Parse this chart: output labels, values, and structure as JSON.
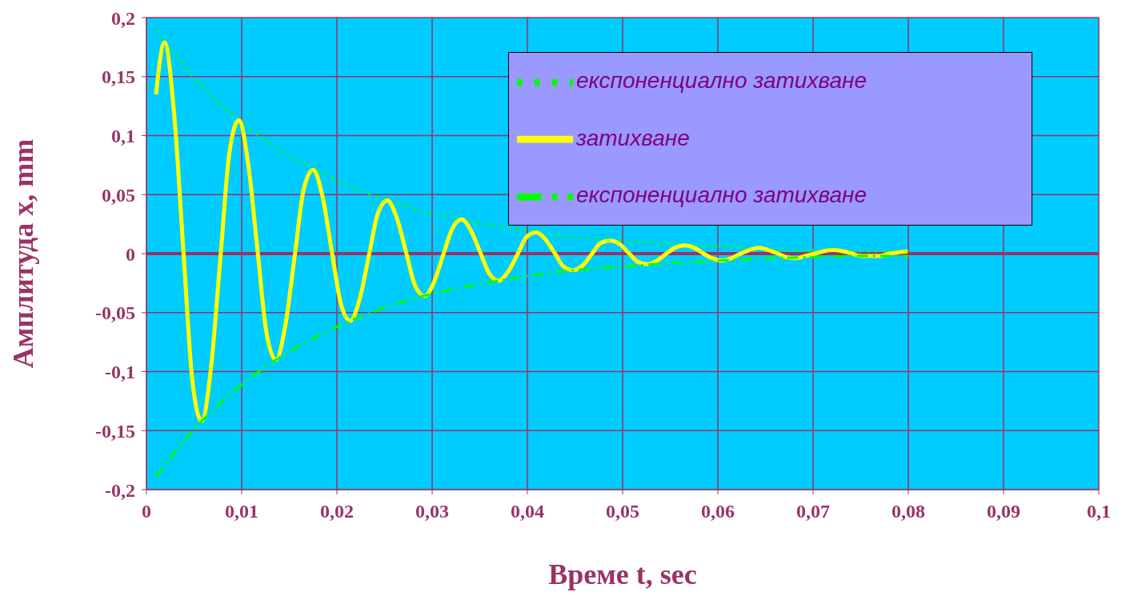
{
  "chart_data": {
    "type": "line",
    "xlabel": "Време t,  sec",
    "ylabel": "Амплитуда x,  mm",
    "xlim": [
      0,
      0.1
    ],
    "xticks": [
      0,
      {
        "value": 0.01,
        "label": "0,01"
      },
      {
        "value": 0.02,
        "label": "0,02"
      },
      {
        "value": 0.03,
        "label": "0,03"
      },
      {
        "value": 0.04,
        "label": "0,04"
      },
      {
        "value": 0.05,
        "label": "0,05"
      },
      {
        "value": 0.06,
        "label": "0,06"
      },
      {
        "value": 0.07,
        "label": "0,07"
      },
      {
        "value": 0.08,
        "label": "0,08"
      },
      {
        "value": 0.09,
        "label": "0,09"
      },
      {
        "value": 0.1,
        "label": "0,1"
      }
    ],
    "ylim": [
      -0.2,
      0.2
    ],
    "yticks": [
      {
        "value": -0.2,
        "label": "-0,2"
      },
      {
        "value": -0.15,
        "label": "-0,15"
      },
      {
        "value": -0.1,
        "label": "-0,1"
      },
      {
        "value": -0.05,
        "label": "-0,05"
      },
      0,
      {
        "value": 0.05,
        "label": "0,05"
      },
      {
        "value": 0.1,
        "label": "0,1"
      },
      {
        "value": 0.15,
        "label": "0,15"
      },
      {
        "value": 0.2,
        "label": "0,2"
      }
    ],
    "grid": true,
    "legend": "top right",
    "marker": "none",
    "ref_lines": [
      {
        "axis": "y",
        "value": 0,
        "color": "#993366"
      }
    ],
    "series": [
      {
        "name": "експоненциално затихване",
        "color": "#00ff00",
        "line_style": "dotted",
        "x": [
          0.001,
          0.005,
          0.01,
          0.015,
          0.02,
          0.025,
          0.03,
          0.035,
          0.04,
          0.045,
          0.05,
          0.055,
          0.06,
          0.065,
          0.07,
          0.075,
          0.08
        ],
        "values": [
          0.189,
          0.149,
          0.111,
          0.083,
          0.062,
          0.046,
          0.034,
          0.026,
          0.019,
          0.014,
          0.011,
          0.008,
          0.006,
          0.004,
          0.003,
          0.002,
          0.002
        ]
      },
      {
        "name": "затихване",
        "color": "#ffff00",
        "line_style": "solid",
        "x": [
          0.001,
          0.0019,
          0.0029,
          0.0039,
          0.0048,
          0.0058,
          0.0068,
          0.0078,
          0.0087,
          0.0097,
          0.0107,
          0.0117,
          0.0126,
          0.0136,
          0.0146,
          0.0156,
          0.0165,
          0.0175,
          0.0185,
          0.0195,
          0.0204,
          0.0214,
          0.0224,
          0.0234,
          0.0243,
          0.0253,
          0.0263,
          0.0273,
          0.0282,
          0.0292,
          0.0302,
          0.0312,
          0.0321,
          0.0331,
          0.0341,
          0.0351,
          0.036,
          0.037,
          0.038,
          0.039,
          0.0399,
          0.0409,
          0.0419,
          0.0429,
          0.0438,
          0.0448,
          0.0458,
          0.0468,
          0.0477,
          0.0487,
          0.0497,
          0.0507,
          0.0516,
          0.0526,
          0.0536,
          0.0546,
          0.0555,
          0.0565,
          0.0575,
          0.0585,
          0.0594,
          0.0604,
          0.0614,
          0.0624,
          0.0633,
          0.0643,
          0.0653,
          0.0663,
          0.0672,
          0.0682,
          0.0692,
          0.0702,
          0.0711,
          0.0721,
          0.0731,
          0.0741,
          0.075,
          0.076,
          0.077,
          0.078,
          0.0789,
          0.0799
        ],
        "values": [
          0.135,
          0.179,
          0.119,
          0,
          -0.106,
          -0.142,
          -0.095,
          0,
          0.085,
          0.113,
          0.075,
          0,
          -0.067,
          -0.09,
          -0.06,
          0,
          0.054,
          0.071,
          0.048,
          0,
          -0.042,
          -0.057,
          -0.038,
          0,
          0.034,
          0.045,
          0.03,
          0,
          -0.027,
          -0.036,
          -0.024,
          0,
          0.021,
          0.029,
          0.019,
          0,
          -0.017,
          -0.023,
          -0.015,
          0,
          0.014,
          0.018,
          0.012,
          0,
          -0.011,
          -0.014,
          -0.01,
          0,
          0.009,
          0.011,
          0.008,
          0,
          -0.007,
          -0.009,
          -0.006,
          0,
          0.005,
          0.007,
          0.005,
          0,
          -0.004,
          -0.006,
          -0.004,
          0,
          0.003,
          0.005,
          0.003,
          0,
          -0.003,
          -0.004,
          -0.002,
          0,
          0.002,
          0.003,
          0.002,
          0,
          -0.002,
          -0.002,
          -0.002,
          0,
          0.001,
          0.002
        ]
      },
      {
        "name": "експоненциално затихване",
        "color": "#00ff00",
        "line_style": "dashed",
        "x": [
          0.001,
          0.005,
          0.01,
          0.015,
          0.02,
          0.025,
          0.03,
          0.035,
          0.04,
          0.045,
          0.05,
          0.055,
          0.06,
          0.065,
          0.07,
          0.075,
          0.08
        ],
        "values": [
          -0.189,
          -0.149,
          -0.111,
          -0.083,
          -0.062,
          -0.046,
          -0.034,
          -0.026,
          -0.019,
          -0.014,
          -0.011,
          -0.008,
          -0.006,
          -0.004,
          -0.003,
          -0.002,
          -0.002
        ]
      }
    ]
  }
}
